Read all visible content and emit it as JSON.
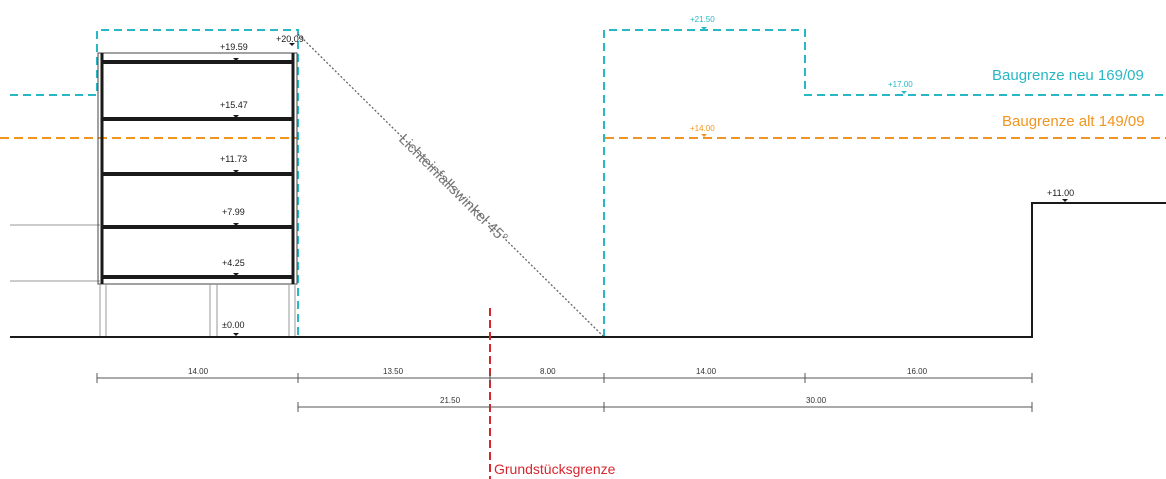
{
  "building_levels": [
    "+19.59",
    "+15.47",
    "+11.73",
    "+7.99",
    "+4.25",
    "±0.00"
  ],
  "top_level": "+20.09",
  "cyan_levels": {
    "peak": "+21.50",
    "step": "+17.00"
  },
  "orange_level": "+14.00",
  "right_building_level": "+11.00",
  "labels": {
    "baugrenze_neu": "Baugrenze neu 169/09",
    "baugrenze_alt": "Baugrenze alt 149/09",
    "light_angle": "Lichteinfallswinkel 45°",
    "property_line": "Grundstücksgrenze"
  },
  "dimensions_row1": [
    "14.00",
    "13.50",
    "8.00",
    "14.00",
    "16.00"
  ],
  "dimensions_row2": [
    "21.50",
    "30.00"
  ],
  "colors": {
    "cyan": "#28b7c4",
    "orange": "#f0951f",
    "red": "#d7262d",
    "ground": "#1a1a1a"
  }
}
